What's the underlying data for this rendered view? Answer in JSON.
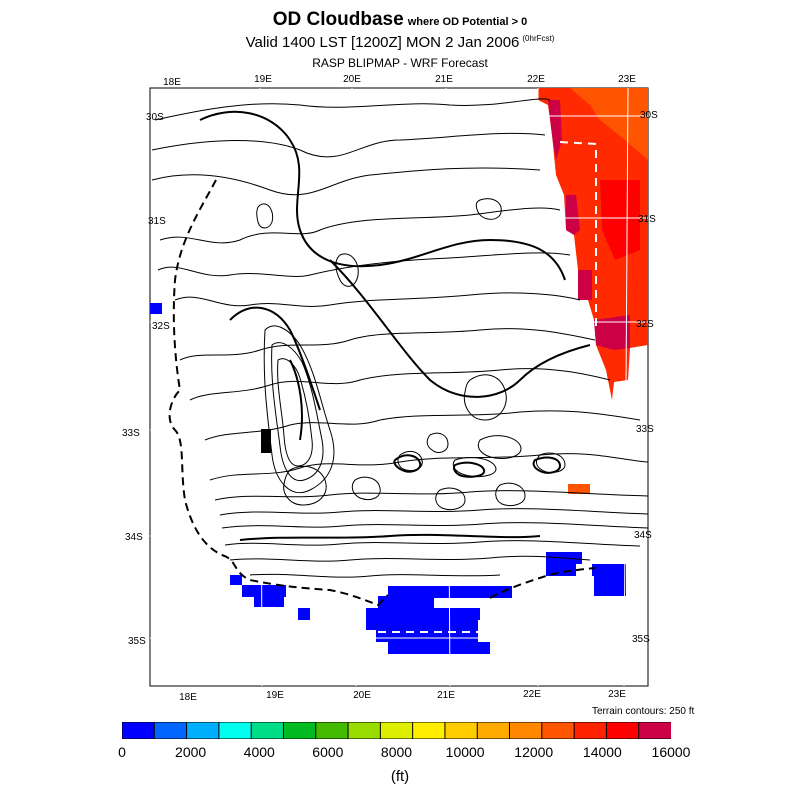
{
  "title": {
    "main": "OD Cloudbase",
    "qualifier": "where OD Potential > 0"
  },
  "subtitle": {
    "text": "Valid 1400 LST [1200Z] MON 2 Jan 2006",
    "fcst": "(0hrFcst)"
  },
  "source": "RASP BLIPMAP - WRF Forecast",
  "map": {
    "top_lon_labels": [
      "18E",
      "19E",
      "20E",
      "21E",
      "22E",
      "23E"
    ],
    "bottom_lon_labels": [
      "18E",
      "19E",
      "20E",
      "21E",
      "22E",
      "23E"
    ],
    "left_lat_labels": [
      "30S",
      "31S",
      "32S",
      "33S",
      "34S",
      "35S"
    ],
    "right_lat_labels": [
      "30S",
      "31S",
      "32S",
      "33S",
      "34S",
      "35S"
    ],
    "terrain_note": "Terrain contours: 250 ft"
  },
  "colorbar": {
    "unit": "(ft)",
    "ticks": [
      "0",
      "2000",
      "4000",
      "6000",
      "8000",
      "10000",
      "12000",
      "14000",
      "16000"
    ],
    "colors": [
      "#0000ff",
      "#0066ff",
      "#00b0ff",
      "#00ffee",
      "#00dd88",
      "#00bb22",
      "#44bb00",
      "#99dd00",
      "#ddee00",
      "#ffee00",
      "#ffcc00",
      "#ffaa00",
      "#ff8800",
      "#ff5500",
      "#ff2200",
      "#ff0000",
      "#cc0044"
    ]
  }
}
